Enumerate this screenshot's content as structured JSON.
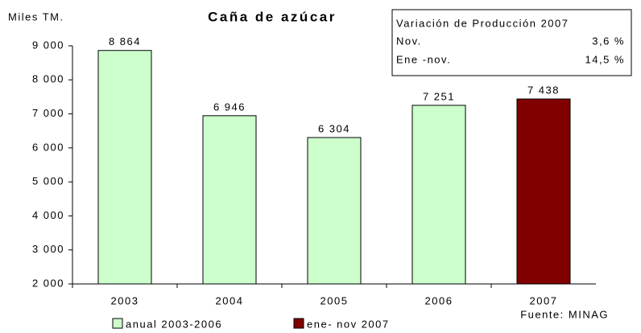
{
  "chart_data": {
    "type": "bar",
    "title": "Caña de azúcar",
    "y_label": "Miles TM.",
    "categories": [
      "2003",
      "2004",
      "2005",
      "2006",
      "2007"
    ],
    "series": [
      {
        "name": "anual 2003-2006",
        "color": "#ccffcc",
        "values": [
          8864,
          6946,
          6304,
          7251,
          null
        ],
        "value_labels": [
          "8 864",
          "6 946",
          "6 304",
          "7 251",
          null
        ]
      },
      {
        "name": "ene- nov 2007",
        "color": "#800000",
        "values": [
          null,
          null,
          null,
          null,
          7438
        ],
        "value_labels": [
          null,
          null,
          null,
          null,
          "7 438"
        ]
      }
    ],
    "ylim": [
      2000,
      9000
    ],
    "yticks": [
      {
        "value": 2000,
        "label": "2 000"
      },
      {
        "value": 3000,
        "label": "3 000"
      },
      {
        "value": 4000,
        "label": "4 000"
      },
      {
        "value": 5000,
        "label": "5 000"
      },
      {
        "value": 6000,
        "label": "6 000"
      },
      {
        "value": 7000,
        "label": "7 000"
      },
      {
        "value": 8000,
        "label": "8 000"
      },
      {
        "value": 9000,
        "label": "9 000"
      }
    ],
    "grid": false,
    "source": "Fuente: MINAG",
    "info_box": {
      "title": "Variación de Producción 2007",
      "rows": [
        [
          "Nov.",
          "3,6 %"
        ],
        [
          "Ene -nov.",
          "14,5 %"
        ]
      ]
    }
  }
}
